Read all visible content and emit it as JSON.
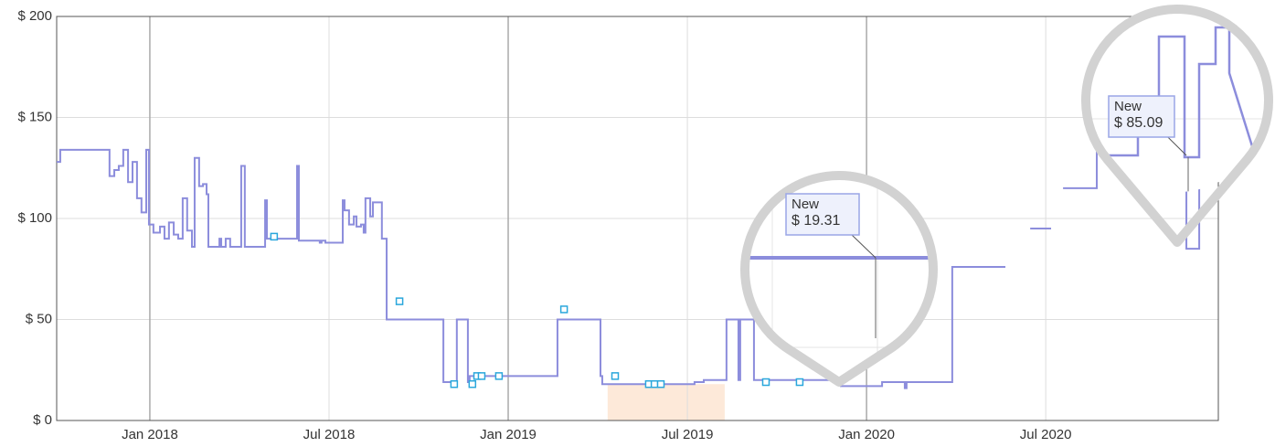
{
  "chart_data": {
    "type": "line",
    "xlim": [
      -3.12,
      35.78
    ],
    "xticks": [
      {
        "value": 0,
        "label": "Jan 2018"
      },
      {
        "value": 6,
        "label": "Jul 2018"
      },
      {
        "value": 12,
        "label": "Jan 2019"
      },
      {
        "value": 18,
        "label": "Jul 2019"
      },
      {
        "value": 24,
        "label": "Jan 2020"
      },
      {
        "value": 30,
        "label": "Jul 2020"
      }
    ],
    "ylim": [
      0,
      200
    ],
    "yticks": [
      {
        "value": 0,
        "label": "$ 0"
      },
      {
        "value": 50,
        "label": "$ 50"
      },
      {
        "value": 100,
        "label": "$ 100"
      },
      {
        "value": 150,
        "label": "$ 150"
      },
      {
        "value": 200,
        "label": "$ 200"
      }
    ],
    "grid": true,
    "highlight": {
      "range": [
        15.33,
        19.25
      ],
      "color": "#fde9d9"
    },
    "series": [
      {
        "color": "#8c8ddc",
        "step": true,
        "x": [
          -3.12,
          -3.0,
          -1.35,
          -1.19,
          -1.04,
          -0.89,
          -0.73,
          -0.58,
          -0.43,
          -0.28,
          -0.12,
          -0.03,
          0.12,
          0.34,
          0.49,
          0.64,
          0.8,
          0.95,
          1.1,
          1.25,
          1.41,
          1.5,
          1.65,
          1.78,
          1.9,
          1.96,
          2.33,
          2.39,
          2.54,
          2.69,
          2.85,
          3.06,
          3.18,
          3.86,
          3.92,
          4.01,
          4.93,
          4.99,
          5.11,
          5.69,
          5.75,
          5.88,
          6.46,
          6.52,
          6.67,
          6.83,
          6.92,
          7.07,
          7.16,
          7.22,
          7.38,
          7.47,
          7.59,
          7.77,
          7.84,
          7.93,
          9.83,
          9.89,
          10.28,
          10.35,
          10.65,
          10.71,
          10.84,
          13.65,
          13.71,
          15.09,
          15.15,
          15.33,
          17.02,
          18.24,
          18.55,
          19.31,
          19.38,
          19.71,
          19.77,
          19.83,
          20.23,
          20.29,
          23.14,
          23.45,
          24.52,
          24.58,
          25.28,
          25.34,
          25.47,
          26.87,
          28.65,
          28.65,
          29.48,
          30.18,
          30.18,
          30.58,
          31.65,
          31.71,
          33.7,
          33.79,
          33.85,
          34.65,
          34.71,
          35.08,
          35.14,
          35.45,
          35.51,
          35.57,
          35.63,
          35.69,
          35.75
        ],
        "values": [
          128,
          134,
          121,
          124,
          126,
          134,
          118,
          128,
          110,
          103,
          134,
          97,
          93,
          96,
          90,
          98,
          92,
          90,
          110,
          94,
          86,
          130,
          116,
          117,
          112,
          86,
          90,
          86,
          90,
          86,
          86,
          126,
          86,
          109,
          90,
          90,
          126,
          89,
          89,
          88,
          89,
          88,
          109,
          104,
          97,
          101,
          96,
          97,
          93,
          110,
          101,
          108,
          108,
          90,
          90,
          50,
          19,
          19,
          50,
          50,
          19,
          22,
          22,
          50,
          50,
          22,
          18,
          18,
          18,
          19,
          20,
          50,
          50,
          20,
          50,
          50,
          20,
          20,
          17,
          17,
          19,
          19,
          16,
          19,
          19,
          76,
          76,
          null,
          95,
          95,
          null,
          115,
          115,
          133,
          133,
          150,
          190,
          190,
          85,
          85,
          174,
          174,
          193,
          185,
          170,
          150,
          135
        ]
      },
      {
        "color": "#2aa7dc",
        "marker": "square",
        "x": [
          4.16,
          8.36,
          10.19,
          10.8,
          10.96,
          11.11,
          11.69,
          13.87,
          15.58,
          16.71,
          16.9,
          17.11,
          20.63,
          21.76
        ],
        "values": [
          91,
          59,
          18,
          18,
          22,
          22,
          22,
          55,
          22,
          18,
          18,
          18,
          19,
          19
        ]
      }
    ],
    "annotations": [
      {
        "label": "New",
        "text": "$ 19.31"
      },
      {
        "label": "New",
        "text": "$ 85.09"
      }
    ]
  }
}
